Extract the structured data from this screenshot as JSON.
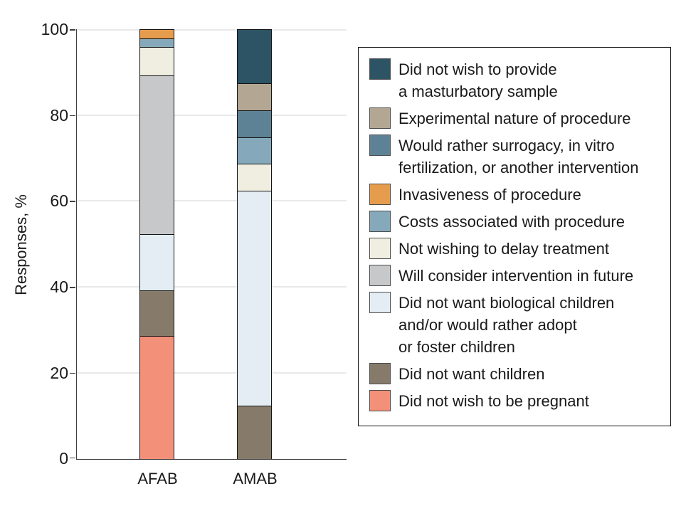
{
  "chart_data": {
    "type": "bar",
    "variant": "stacked-vertical",
    "title": "",
    "xlabel": "",
    "ylabel": "Responses, %",
    "categories": [
      "AFAB",
      "AMAB"
    ],
    "ylim": [
      0,
      100
    ],
    "yticks": [
      0,
      20,
      40,
      60,
      80,
      100
    ],
    "grid": "horizontal",
    "legend_position": "right",
    "stack_order": "series listed top-to-bottom as stacked in bars and in legend",
    "series": [
      {
        "name": "Did not wish to provide\na masturbatory sample",
        "color": "#2C5465",
        "values": [
          0,
          12.5
        ]
      },
      {
        "name": "Experimental nature of procedure",
        "color": "#B3A794",
        "values": [
          0,
          6.25
        ]
      },
      {
        "name": "Would rather surrogacy, in vitro\nfertilization, or another intervention",
        "color": "#5E8295",
        "values": [
          0,
          6.25
        ]
      },
      {
        "name": "Invasiveness of procedure",
        "color": "#E69C4D",
        "values": [
          2.0,
          0
        ]
      },
      {
        "name": "Costs associated with procedure",
        "color": "#85A9BA",
        "values": [
          2.0,
          6.25
        ]
      },
      {
        "name": "Not wishing to delay treatment",
        "color": "#EFEEE1",
        "values": [
          6.7,
          6.25
        ]
      },
      {
        "name": "Will consider intervention in future",
        "color": "#C7C8CA",
        "values": [
          36.9,
          0
        ]
      },
      {
        "name": "Did not want biological children\nand/or would rather adopt\nor foster children",
        "color": "#E3EDF3",
        "values": [
          13.1,
          50
        ]
      },
      {
        "name": "Did not want children",
        "color": "#867B6B",
        "values": [
          10.7,
          12.5
        ]
      },
      {
        "name": "Did not wish to be pregnant",
        "color": "#F2907A",
        "values": [
          28.6,
          0
        ]
      }
    ],
    "style": {
      "axis_color": "#3f3f3f",
      "grid_color": "#e9e9e9",
      "segment_outline": "#141414",
      "text_color": "#1a1a1a"
    }
  }
}
